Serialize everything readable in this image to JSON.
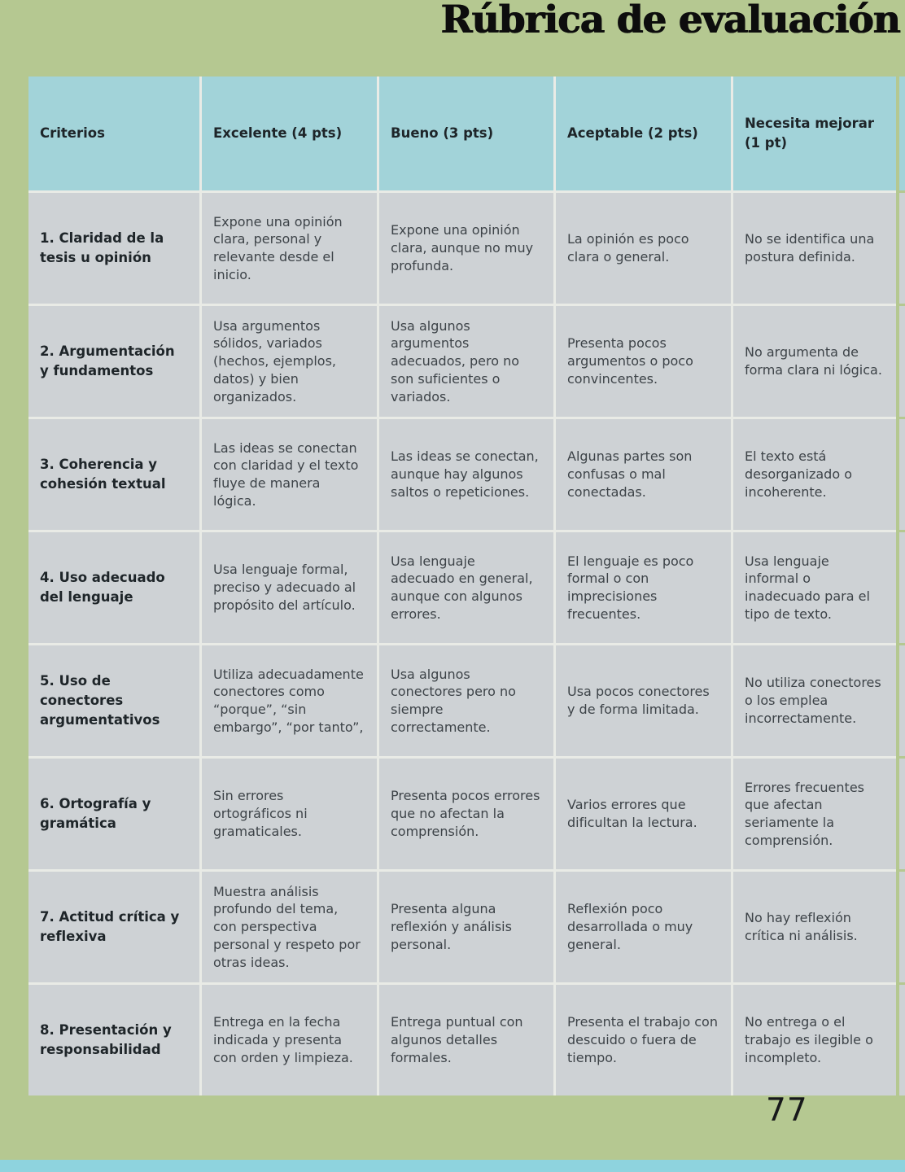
{
  "page": {
    "title": "Rúbrica de evaluación",
    "page_number": "77"
  },
  "colors": {
    "background": "#b5c891",
    "header_bg": "#a2d3d9",
    "cell_bg": "#ced2d5",
    "gap": "#e9ebe6",
    "footer_bar": "#8ed3de",
    "text_heading": "#1e2529",
    "text_body": "#3d4348"
  },
  "table": {
    "columns": [
      "Criterios",
      "Excelente (4 pts)",
      "Bueno (3 pts)",
      "Aceptable (2 pts)",
      "Necesita mejorar (1 pt)"
    ],
    "rows": [
      {
        "criterion": "1. Claridad de la tesis u opinión",
        "cells": [
          "Expone una opinión clara, personal y relevante desde el inicio.",
          "Expone una opinión clara, aunque no muy profunda.",
          "La opinión es poco clara o general.",
          "No se identifica una postura definida."
        ]
      },
      {
        "criterion": "2. Argumentación y fundamentos",
        "cells": [
          "Usa argumentos sólidos, variados (hechos, ejemplos, datos) y bien organizados.",
          "Usa algunos argumentos adecuados, pero no son suficientes o variados.",
          "Presenta pocos argumentos o poco convincentes.",
          "No argumenta de forma clara ni lógica."
        ]
      },
      {
        "criterion": "3. Coherencia y cohesión textual",
        "cells": [
          "Las ideas se conectan con claridad y el texto fluye de manera lógica.",
          "Las ideas se conectan, aunque hay algunos saltos o repeticiones.",
          "Algunas partes son confusas o mal conectadas.",
          "El texto está desorganizado o incoherente."
        ]
      },
      {
        "criterion": "4. Uso adecuado del lenguaje",
        "cells": [
          "Usa lenguaje formal, preciso y adecuado al propósito del artículo.",
          "Usa lenguaje adecuado en general, aunque con algunos errores.",
          "El lenguaje es poco formal o con imprecisiones frecuentes.",
          "Usa lenguaje informal o inadecuado para el tipo de texto."
        ]
      },
      {
        "criterion": "5. Uso de conectores argumentativos",
        "cells": [
          "Utiliza adecuadamente conectores como “porque”, “sin embargo”, “por tanto”,",
          "Usa algunos conectores pero no siempre correctamente.",
          "Usa pocos conectores y de forma limitada.",
          "No utiliza conectores o los emplea incorrectamente."
        ]
      },
      {
        "criterion": "6. Ortografía y gramática",
        "cells": [
          "Sin errores ortográficos ni gramaticales.",
          "Presenta pocos errores que no afectan la comprensión.",
          "Varios errores que dificultan la lectura.",
          "Errores frecuentes que afectan seriamente la comprensión."
        ]
      },
      {
        "criterion": "7. Actitud crítica y reflexiva",
        "cells": [
          "Muestra análisis profundo del tema, con perspectiva personal y respeto por otras ideas.",
          "Presenta alguna reflexión y análisis personal.",
          "Reflexión poco desarrollada o muy general.",
          "No hay reflexión crítica ni análisis."
        ]
      },
      {
        "criterion": "8. Presentación y responsabilidad",
        "cells": [
          "Entrega en la fecha indicada y presenta con orden y limpieza.",
          "Entrega puntual con algunos detalles formales.",
          "Presenta el trabajo con descuido o fuera de tiempo.",
          "No entrega o el trabajo es ilegible o incompleto."
        ]
      }
    ]
  }
}
